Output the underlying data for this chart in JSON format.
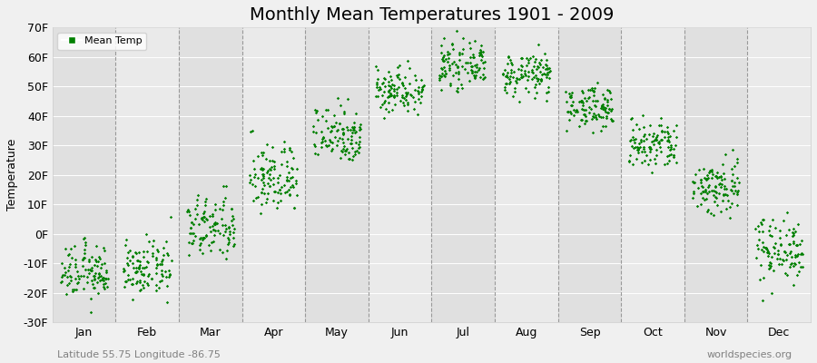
{
  "title": "Monthly Mean Temperatures 1901 - 2009",
  "ylabel": "Temperature",
  "xlabel_bottom_left": "Latitude 55.75 Longitude -86.75",
  "xlabel_bottom_right": "worldspecies.org",
  "ylim": [
    -30,
    70
  ],
  "yticks": [
    -30,
    -20,
    -10,
    0,
    10,
    20,
    30,
    40,
    50,
    60,
    70
  ],
  "ytick_labels": [
    "-30F",
    "-20F",
    "-10F",
    "0F",
    "10F",
    "20F",
    "30F",
    "40F",
    "50F",
    "60F",
    "70F"
  ],
  "months": [
    "Jan",
    "Feb",
    "Mar",
    "Apr",
    "May",
    "Jun",
    "Jul",
    "Aug",
    "Sep",
    "Oct",
    "Nov",
    "Dec"
  ],
  "month_means": [
    -13,
    -12,
    2,
    19,
    34,
    49,
    57,
    54,
    43,
    30,
    16,
    -5
  ],
  "month_stds": [
    4.5,
    4.5,
    5.5,
    6,
    5,
    4,
    3.5,
    3.5,
    3.5,
    4.5,
    5,
    5.5
  ],
  "n_points": 109,
  "dot_color": "#008000",
  "dot_size": 3,
  "background_color": "#f0f0f0",
  "band_colors": [
    "#e0e0e0",
    "#eaeaea"
  ],
  "grid_color": "#999999",
  "title_fontsize": 14,
  "label_fontsize": 9,
  "tick_fontsize": 9,
  "legend_label": "Mean Temp",
  "legend_marker_color": "#008000"
}
